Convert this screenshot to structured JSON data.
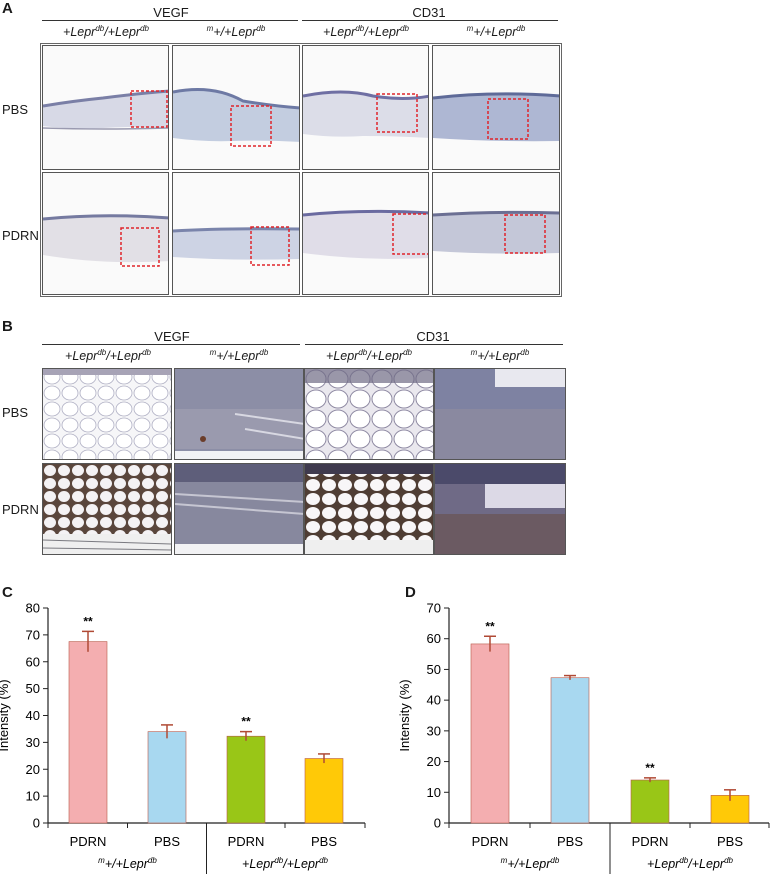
{
  "panels": {
    "A": {
      "label": "A",
      "groups": [
        "VEGF",
        "CD31"
      ],
      "genotypes": [
        {
          "base": "+Lepr",
          "sup": "db",
          "mid": "/+Lepr",
          "sup2": "db"
        },
        {
          "pre": "m",
          "base": "+/+Lepr",
          "sup": "db"
        },
        {
          "base": "+Lepr",
          "sup": "db",
          "mid": "/+Lepr",
          "sup2": "db"
        },
        {
          "pre": "m",
          "base": "+/+Lepr",
          "sup": "db"
        }
      ],
      "rows": [
        "PBS",
        "PDRN"
      ]
    },
    "B": {
      "label": "B",
      "groups": [
        "VEGF",
        "CD31"
      ],
      "rows": [
        "PBS",
        "PDRN"
      ]
    },
    "C": {
      "label": "C"
    },
    "D": {
      "label": "D"
    }
  },
  "chart_data": [
    {
      "type": "bar",
      "panel": "C",
      "ylabel": "Intensity (%)",
      "ylim": [
        0,
        80
      ],
      "yticks": [
        0,
        10,
        20,
        30,
        40,
        50,
        60,
        70,
        80
      ],
      "categories": [
        "PDRN",
        "PBS",
        "PDRN",
        "PBS"
      ],
      "values": [
        67.5,
        34,
        32.3,
        24
      ],
      "errors": [
        3.8,
        2.5,
        1.7,
        1.7
      ],
      "significance": [
        "**",
        "",
        "**",
        ""
      ],
      "colors": [
        "#f4aeb0",
        "#a8d8f0",
        "#99c617",
        "#ffc907"
      ],
      "groups": [
        {
          "pre": "m",
          "base": "+/+Lepr",
          "sup": "db",
          "span": [
            0,
            1
          ]
        },
        {
          "base": "+Lepr",
          "sup": "db",
          "mid": "/+Lepr",
          "sup2": "db",
          "span": [
            2,
            3
          ]
        }
      ]
    },
    {
      "type": "bar",
      "panel": "D",
      "ylabel": "Intensity (%)",
      "ylim": [
        0,
        70
      ],
      "yticks": [
        0,
        10,
        20,
        30,
        40,
        50,
        60,
        70
      ],
      "categories": [
        "PDRN",
        "PBS",
        "PDRN",
        "PBS"
      ],
      "values": [
        58.3,
        47.3,
        14,
        9
      ],
      "errors": [
        2.5,
        0.7,
        0.7,
        1.8
      ],
      "significance": [
        "**",
        "",
        "**",
        ""
      ],
      "colors": [
        "#f4aeb0",
        "#a8d8f0",
        "#99c617",
        "#ffc907"
      ],
      "groups": [
        {
          "pre": "m",
          "base": "+/+Lepr",
          "sup": "db",
          "span": [
            0,
            1
          ]
        },
        {
          "base": "+Lepr",
          "sup": "db",
          "mid": "/+Lepr",
          "sup2": "db",
          "span": [
            2,
            3
          ]
        }
      ]
    }
  ]
}
